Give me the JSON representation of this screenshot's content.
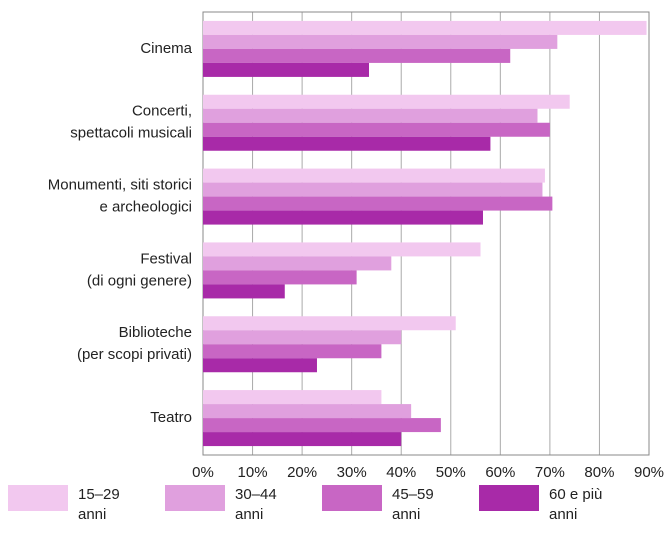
{
  "chart_data": {
    "type": "hbar",
    "categories": [
      [
        "Cinema"
      ],
      [
        "Concerti,",
        "spettacoli musicali"
      ],
      [
        "Monumenti, siti storici",
        "e archeologici"
      ],
      [
        "Festival",
        "(di ogni genere)"
      ],
      [
        "Biblioteche",
        "(per scopi privati)"
      ],
      [
        "Teatro"
      ]
    ],
    "series": [
      {
        "name": "15–29 anni",
        "color": "#f2c8ef",
        "values": [
          89.5,
          74,
          69,
          56,
          51,
          36
        ]
      },
      {
        "name": "30–44 anni",
        "color": "#e0a0de",
        "values": [
          71.5,
          67.5,
          68.5,
          38,
          40,
          42
        ]
      },
      {
        "name": "45–59 anni",
        "color": "#c866c4",
        "values": [
          62,
          70,
          70.5,
          31,
          36,
          48
        ]
      },
      {
        "name": "60 e più anni",
        "color": "#a82aa8",
        "values": [
          33.5,
          58,
          56.5,
          16.5,
          23,
          40
        ]
      }
    ],
    "xlim": [
      0,
      90
    ],
    "xticks": [
      {
        "value": 0,
        "label": "0%"
      },
      {
        "value": 10,
        "label": "10%"
      },
      {
        "value": 20,
        "label": "20%"
      },
      {
        "value": 30,
        "label": "30%"
      },
      {
        "value": 40,
        "label": "40%"
      },
      {
        "value": 50,
        "label": "50%"
      },
      {
        "value": 60,
        "label": "60%"
      },
      {
        "value": 70,
        "label": "70%"
      },
      {
        "value": 80,
        "label": "80%"
      },
      {
        "value": 90,
        "label": "90%"
      }
    ],
    "grid": true
  }
}
